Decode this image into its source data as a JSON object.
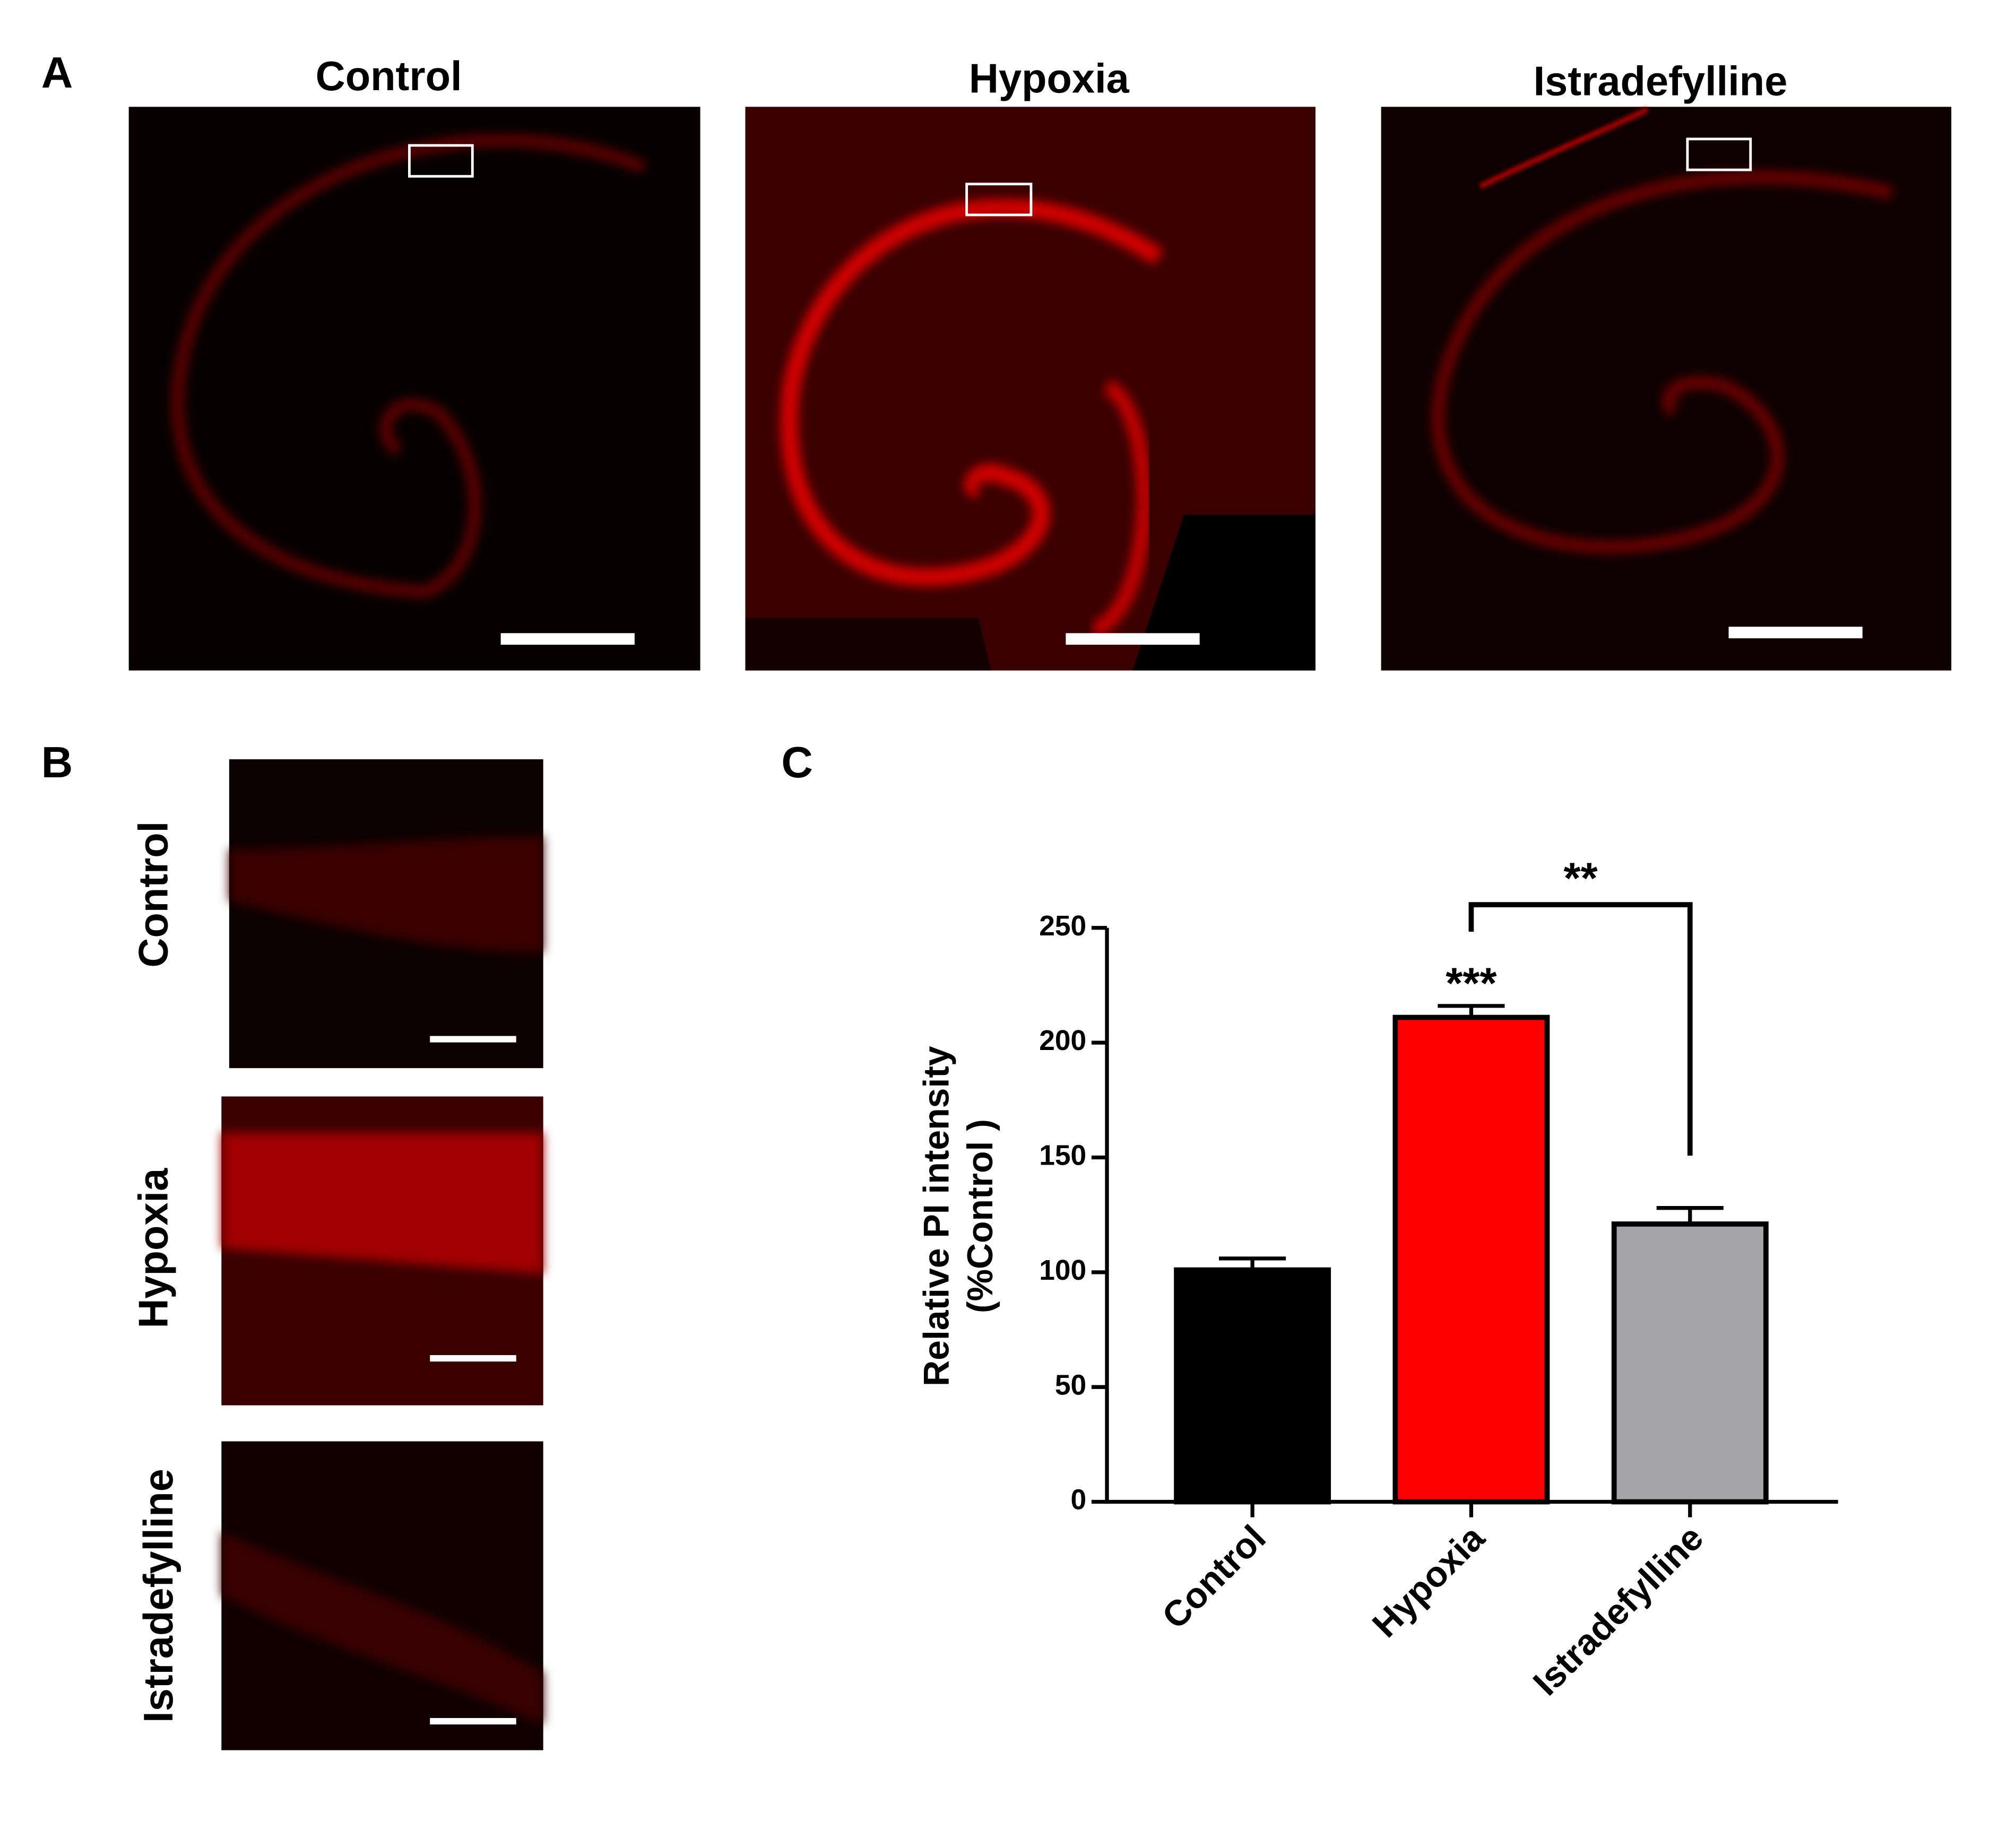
{
  "panels": {
    "a": {
      "label": "A",
      "titles": [
        "Control",
        "Hypoxia",
        "Istradefylline"
      ]
    },
    "b": {
      "label": "B",
      "titles": [
        "Control",
        "Hypoxia",
        "Istradefylline"
      ]
    },
    "c": {
      "label": "C"
    }
  },
  "chart_data": {
    "type": "bar",
    "categories": [
      "Control",
      "Hypoxia",
      "Istradefylline"
    ],
    "values": [
      101,
      211,
      121
    ],
    "errors": [
      5,
      5,
      7
    ],
    "colors": [
      "#000000",
      "#ff0000",
      "#a5a5aa"
    ],
    "ylabel": [
      "Relative PI intensity",
      "(%Control )"
    ],
    "ylim": [
      0,
      250
    ],
    "yticks": [
      0,
      50,
      100,
      150,
      200,
      250
    ],
    "annotations": {
      "hypoxia_vs_control": "***",
      "hypoxia_vs_istradefylline": "**"
    }
  }
}
